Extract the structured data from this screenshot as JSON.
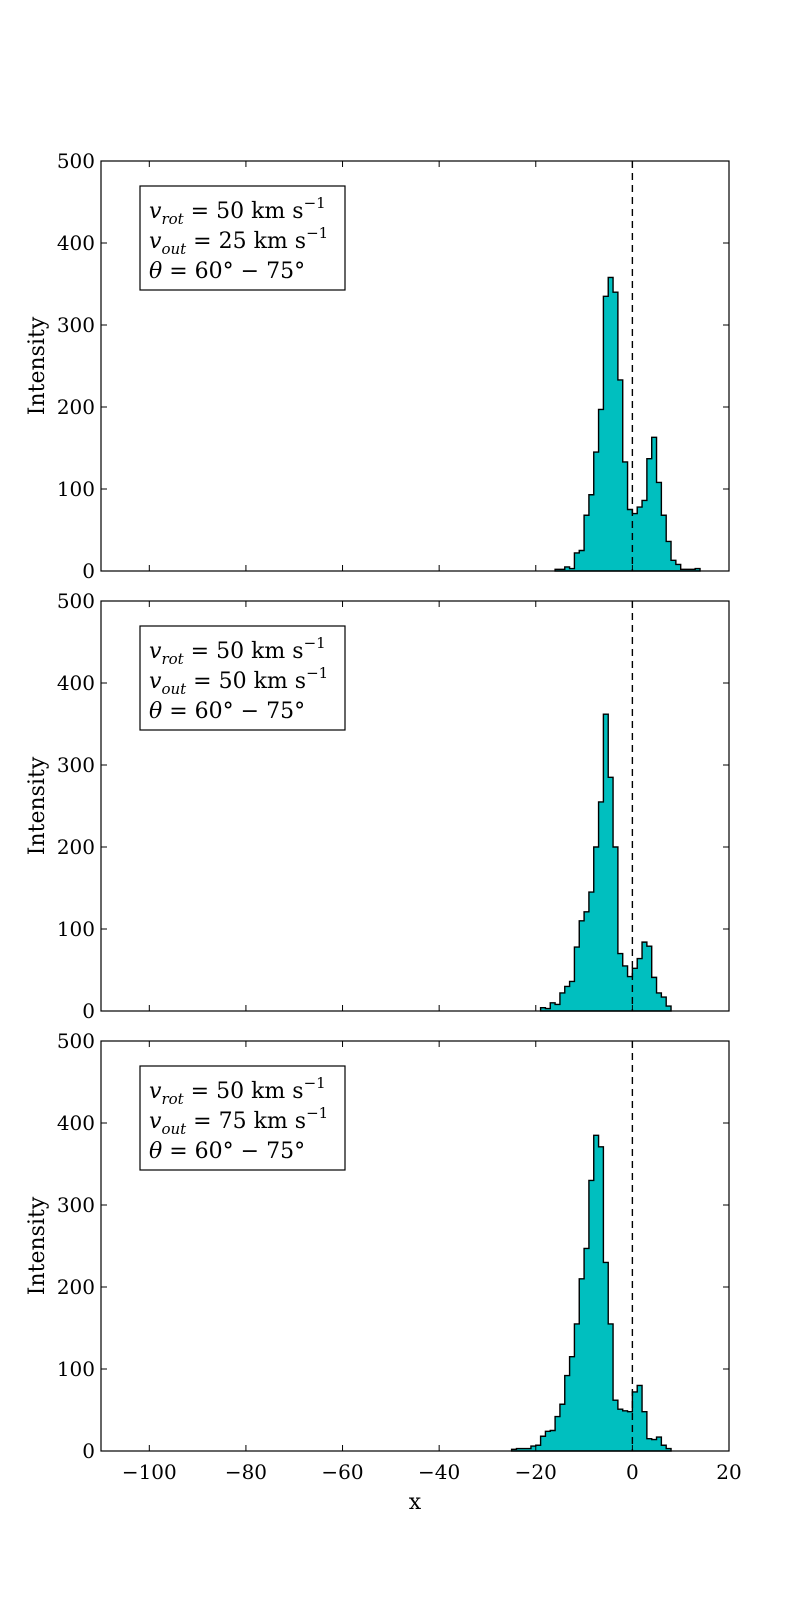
{
  "chart_data": [
    {
      "type": "bar",
      "histogram": true,
      "ylabel": "Intensity",
      "xlabel": "",
      "xlim": [
        -110,
        20
      ],
      "ylim": [
        0,
        500
      ],
      "bin_width": 1,
      "bins_start": -16,
      "values": [
        2,
        2,
        5,
        3,
        22,
        25,
        68,
        93,
        145,
        197,
        335,
        358,
        340,
        233,
        133,
        75,
        70,
        78,
        86,
        137,
        163,
        108,
        68,
        36,
        13,
        8,
        2,
        2,
        2,
        3
      ],
      "reference_line_x": 0,
      "legend": {
        "placement": "top-left",
        "vrot": {
          "name": "v",
          "sub": "rot",
          "value": " = 50 km s",
          "exp": "−1"
        },
        "vout": {
          "name": "v",
          "sub": "out",
          "value": " = 25 km s",
          "exp": "−1"
        },
        "theta": {
          "name": "θ",
          "value": " = 60° − 75°"
        }
      },
      "yticks": [
        "0",
        "100",
        "200",
        "300",
        "400",
        "500"
      ],
      "xticks": [
        "−100",
        "−80",
        "−60",
        "−40",
        "−20",
        "0",
        "20"
      ],
      "show_xtick_labels": false
    },
    {
      "type": "bar",
      "histogram": true,
      "ylabel": "Intensity",
      "xlabel": "",
      "xlim": [
        -110,
        20
      ],
      "ylim": [
        0,
        500
      ],
      "bin_width": 1,
      "bins_start": -19,
      "values": [
        4,
        3,
        10,
        8,
        22,
        30,
        36,
        78,
        110,
        121,
        145,
        200,
        255,
        362,
        285,
        200,
        70,
        55,
        42,
        52,
        64,
        84,
        79,
        41,
        22,
        17,
        6
      ],
      "reference_line_x": 0,
      "legend": {
        "placement": "top-left",
        "vrot": {
          "name": "v",
          "sub": "rot",
          "value": " = 50 km s",
          "exp": "−1"
        },
        "vout": {
          "name": "v",
          "sub": "out",
          "value": " = 50 km s",
          "exp": "−1"
        },
        "theta": {
          "name": "θ",
          "value": " = 60° − 75°"
        }
      },
      "yticks": [
        "0",
        "100",
        "200",
        "300",
        "400",
        "500"
      ],
      "xticks": [
        "−100",
        "−80",
        "−60",
        "−40",
        "−20",
        "0",
        "20"
      ],
      "show_xtick_labels": false
    },
    {
      "type": "bar",
      "histogram": true,
      "ylabel": "Intensity",
      "xlabel": "x",
      "xlim": [
        -110,
        20
      ],
      "ylim": [
        0,
        500
      ],
      "bin_width": 1,
      "bins_start": -25,
      "values": [
        2,
        3,
        3,
        3,
        6,
        7,
        18,
        24,
        25,
        42,
        57,
        92,
        115,
        155,
        210,
        247,
        330,
        385,
        371,
        230,
        155,
        62,
        51,
        49,
        48,
        72,
        80,
        48,
        15,
        14,
        17,
        7,
        3
      ],
      "reference_line_x": 0,
      "legend": {
        "placement": "top-left",
        "vrot": {
          "name": "v",
          "sub": "rot",
          "value": " = 50 km s",
          "exp": "−1"
        },
        "vout": {
          "name": "v",
          "sub": "out",
          "value": " = 75 km s",
          "exp": "−1"
        },
        "theta": {
          "name": "θ",
          "value": " = 60° − 75°"
        }
      },
      "yticks": [
        "0",
        "100",
        "200",
        "300",
        "400",
        "500"
      ],
      "xticks": [
        "−100",
        "−80",
        "−60",
        "−40",
        "−20",
        "0",
        "20"
      ],
      "show_xtick_labels": true
    }
  ]
}
